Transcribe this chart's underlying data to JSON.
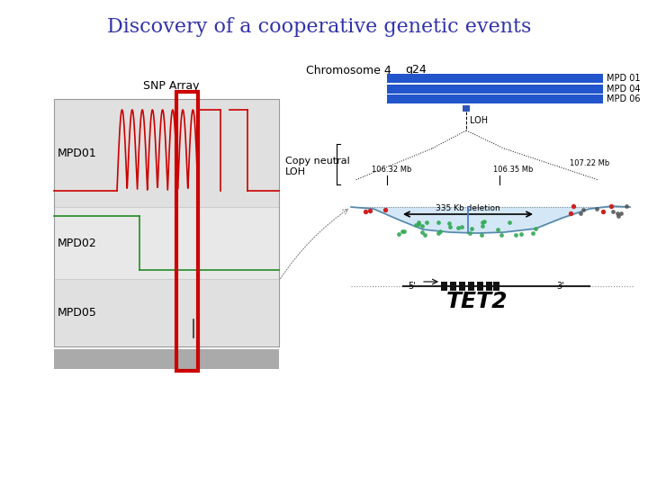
{
  "title": "Discovery of a cooperative genetic events",
  "title_color": "#3333aa",
  "title_fontsize": 16,
  "background_color": "#ffffff",
  "snp_label": "SNP Array",
  "chr_label": "Chromosome 4",
  "q24_label": "q24",
  "copy_neutral_label": "Copy neutral\nLOH",
  "tet2_label": "TET2",
  "mpd_labels": [
    "MPD01",
    "MPD02",
    "MPD05"
  ],
  "band_labels": [
    "MPD 01",
    "MPD 04",
    "MPD 06"
  ],
  "red_line_color": "#cc0000",
  "green_line_color": "#228B22",
  "dark_red_rect": "#cc0000",
  "blue_bar_color": "#2255cc",
  "light_blue_fill": "#b8d8f0",
  "deletion_label": "335 Kb deletion",
  "pos_label1": "106.32 Mb",
  "pos_label2": "106.35 Mb",
  "pos_label3": "107.22 Mb",
  "loh_label": "LOH"
}
